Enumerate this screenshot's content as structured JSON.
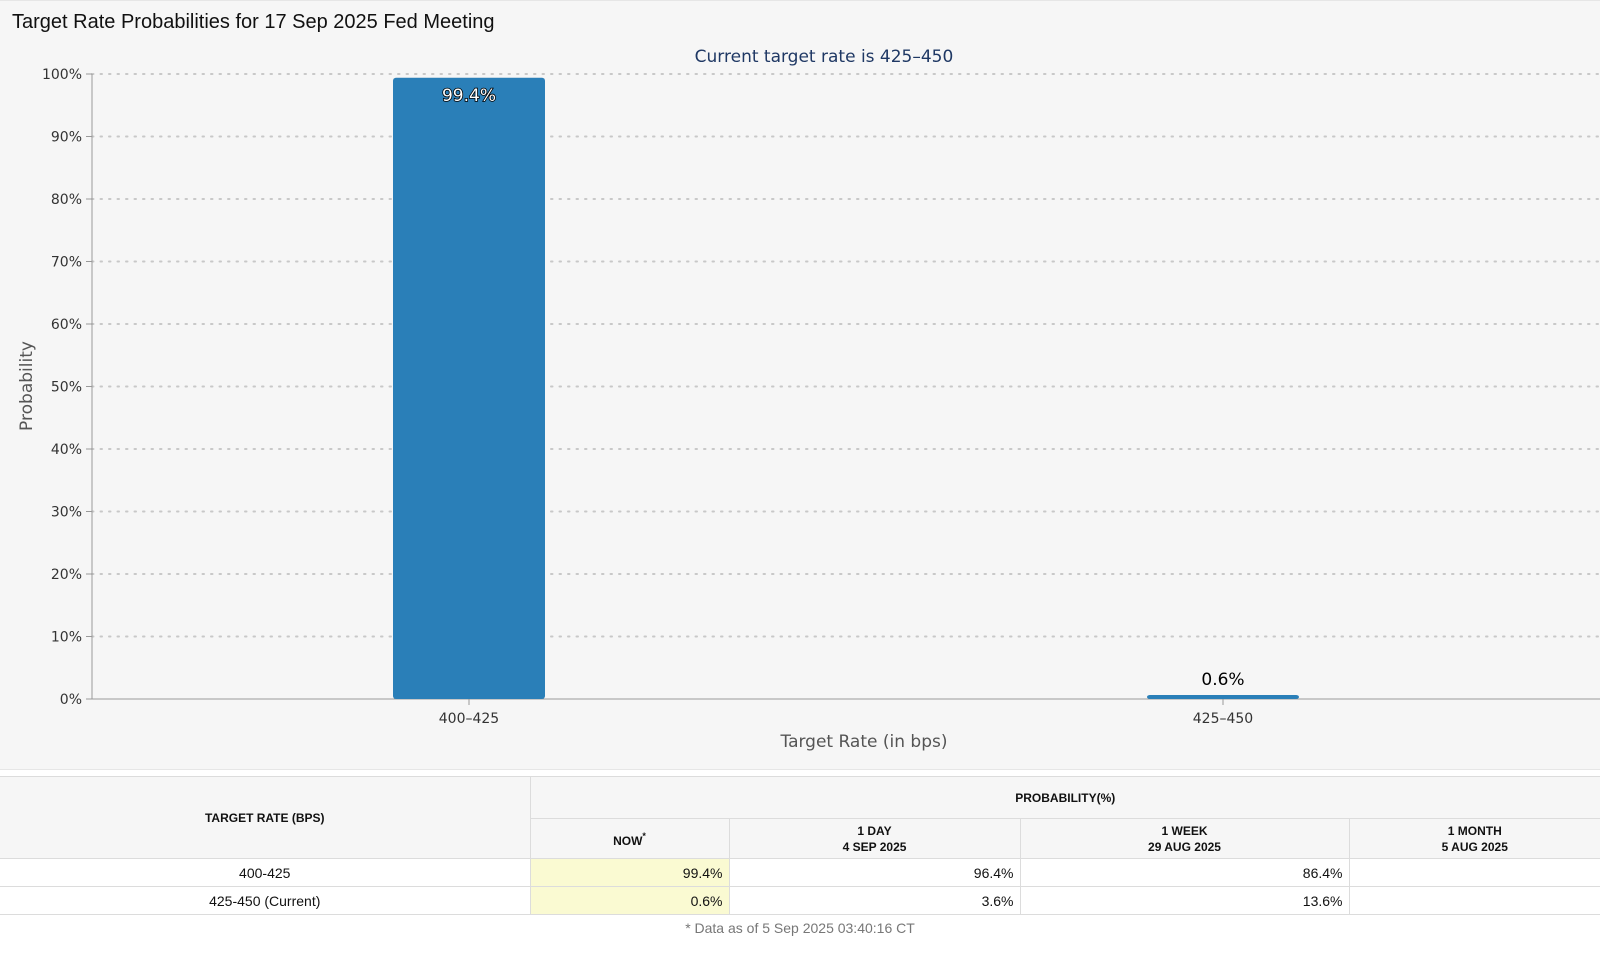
{
  "page": {
    "title": "Target Rate Probabilities for 17 Sep 2025 Fed Meeting"
  },
  "chart_data": {
    "type": "bar",
    "subtitle": "Current target rate is 425–450",
    "categories": [
      "400–425",
      "425–450"
    ],
    "values": [
      99.4,
      0.6
    ],
    "value_labels": [
      "99.4%",
      "0.6%"
    ],
    "xlabel": "Target Rate (in bps)",
    "ylabel": "Probability",
    "ylim": [
      0,
      100
    ],
    "yticks": [
      "0%",
      "10%",
      "20%",
      "30%",
      "40%",
      "50%",
      "60%",
      "70%",
      "80%",
      "90%",
      "100%"
    ],
    "grid": true,
    "bar_color": "#2a7fb8",
    "subtitle_color": "#1f3864"
  },
  "table": {
    "header_rate": "TARGET RATE (BPS)",
    "header_prob": "PROBABILITY(%)",
    "columns": [
      {
        "line1": "NOW",
        "line2": "",
        "star": "*"
      },
      {
        "line1": "1 DAY",
        "line2": "4 SEP 2025",
        "star": ""
      },
      {
        "line1": "1 WEEK",
        "line2": "29 AUG 2025",
        "star": ""
      },
      {
        "line1": "1 MONTH",
        "line2": "5 AUG 2025",
        "star": ""
      }
    ],
    "rows": [
      {
        "rate": "400-425",
        "values": [
          "99.4%",
          "96.4%",
          "86.4%",
          ""
        ]
      },
      {
        "rate": "425-450 (Current)",
        "values": [
          "0.6%",
          "3.6%",
          "13.6%",
          ""
        ]
      }
    ],
    "footnote": "* Data as of 5 Sep 2025 03:40:16 CT"
  }
}
